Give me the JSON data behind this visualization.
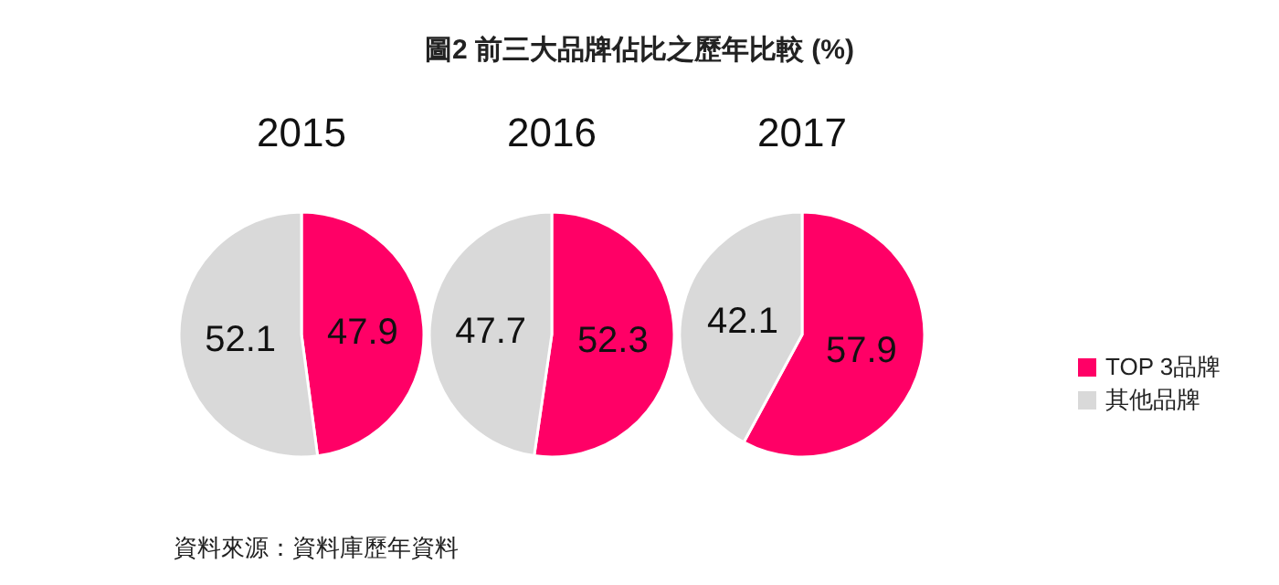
{
  "chart_data": [
    {
      "type": "other",
      "title": "圖2 前三大品牌佔比之歷年比較 (%)",
      "annotations": [
        "資料來源：資料庫歷年資料"
      ]
    },
    {
      "type": "pie",
      "categories": [
        "TOP 3品牌",
        "其他品牌"
      ],
      "colors": [
        "#ff0066",
        "#d9d9d9"
      ],
      "data_labels": true,
      "legend": "right",
      "series": [
        {
          "name": "2015",
          "values": [
            47.9,
            52.1
          ]
        },
        {
          "name": "2016",
          "values": [
            52.3,
            47.7
          ]
        },
        {
          "name": "2017",
          "values": [
            57.9,
            42.1
          ]
        }
      ]
    }
  ]
}
